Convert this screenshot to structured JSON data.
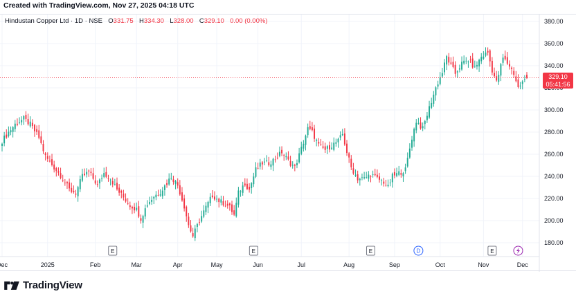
{
  "header": {
    "created_text": "Created with TradingView.com, Nov 27, 2025 04:18 UTC"
  },
  "legend": {
    "symbol": "Hindustan Copper Ltd · 1D · NSE",
    "o_label": "O",
    "o_value": "331.75",
    "h_label": "H",
    "h_value": "334.30",
    "l_label": "L",
    "l_value": "328.00",
    "c_label": "C",
    "c_value": "329.10",
    "change": "0.00 (0.00%)"
  },
  "price_tag": {
    "price": "329.10",
    "countdown": "05:41:56"
  },
  "footer": {
    "brand": "TradingView"
  },
  "colors": {
    "up": "#22ab94",
    "down": "#f23645",
    "grid": "#f0f3fa",
    "accent_dividend": "#2962ff",
    "accent_flash": "#9c27b0"
  },
  "chart_data": {
    "type": "candlestick",
    "title": "Hindustan Copper Ltd · 1D · NSE",
    "y_ticks": [
      180,
      200,
      220,
      240,
      260,
      280,
      300,
      320,
      340,
      360,
      380
    ],
    "ylim": [
      170,
      386
    ],
    "x_labels": [
      {
        "label": "Dec",
        "t": 0
      },
      {
        "label": "2025",
        "t": 21
      },
      {
        "label": "Feb",
        "t": 43
      },
      {
        "label": "Mar",
        "t": 62
      },
      {
        "label": "Apr",
        "t": 81
      },
      {
        "label": "May",
        "t": 99
      },
      {
        "label": "Jun",
        "t": 118
      },
      {
        "label": "Jul",
        "t": 138
      },
      {
        "label": "Aug",
        "t": 160
      },
      {
        "label": "Sep",
        "t": 181
      },
      {
        "label": "Oct",
        "t": 202
      },
      {
        "label": "Nov",
        "t": 222
      },
      {
        "label": "Dec",
        "t": 240
      }
    ],
    "event_markers": [
      {
        "type": "E",
        "t": 51
      },
      {
        "type": "E",
        "t": 116
      },
      {
        "type": "E",
        "t": 170
      },
      {
        "type": "D",
        "t": 192
      },
      {
        "type": "E",
        "t": 226
      },
      {
        "type": "flash",
        "t": 238
      }
    ],
    "anchors": [
      [
        0,
        272
      ],
      [
        3,
        280
      ],
      [
        6,
        287
      ],
      [
        10,
        292
      ],
      [
        13,
        287
      ],
      [
        17,
        275
      ],
      [
        20,
        258
      ],
      [
        24,
        248
      ],
      [
        27,
        241
      ],
      [
        31,
        228
      ],
      [
        34,
        225
      ],
      [
        37,
        240
      ],
      [
        40,
        244
      ],
      [
        44,
        232
      ],
      [
        47,
        243
      ],
      [
        50,
        238
      ],
      [
        53,
        228
      ],
      [
        56,
        221
      ],
      [
        59,
        214
      ],
      [
        62,
        210
      ],
      [
        64,
        202
      ],
      [
        67,
        215
      ],
      [
        70,
        222
      ],
      [
        73,
        226
      ],
      [
        76,
        234
      ],
      [
        78,
        240
      ],
      [
        81,
        232
      ],
      [
        84,
        213
      ],
      [
        86,
        196
      ],
      [
        88,
        186
      ],
      [
        91,
        200
      ],
      [
        94,
        212
      ],
      [
        97,
        223
      ],
      [
        100,
        218
      ],
      [
        103,
        215
      ],
      [
        105,
        212
      ],
      [
        107,
        205
      ],
      [
        109,
        225
      ],
      [
        112,
        234
      ],
      [
        114,
        228
      ],
      [
        117,
        246
      ],
      [
        120,
        252
      ],
      [
        123,
        252
      ],
      [
        126,
        256
      ],
      [
        129,
        262
      ],
      [
        132,
        254
      ],
      [
        135,
        248
      ],
      [
        138,
        265
      ],
      [
        141,
        283
      ],
      [
        143,
        280
      ],
      [
        146,
        268
      ],
      [
        149,
        264
      ],
      [
        152,
        268
      ],
      [
        155,
        272
      ],
      [
        157,
        278
      ],
      [
        159,
        262
      ],
      [
        161,
        248
      ],
      [
        164,
        238
      ],
      [
        167,
        238
      ],
      [
        170,
        242
      ],
      [
        173,
        238
      ],
      [
        176,
        235
      ],
      [
        178,
        230
      ],
      [
        180,
        240
      ],
      [
        183,
        243
      ],
      [
        186,
        246
      ],
      [
        189,
        275
      ],
      [
        191,
        290
      ],
      [
        194,
        283
      ],
      [
        197,
        302
      ],
      [
        200,
        320
      ],
      [
        203,
        334
      ],
      [
        205,
        348
      ],
      [
        207,
        340
      ],
      [
        209,
        333
      ],
      [
        212,
        342
      ],
      [
        215,
        345
      ],
      [
        218,
        338
      ],
      [
        221,
        348
      ],
      [
        224,
        352
      ],
      [
        226,
        336
      ],
      [
        228,
        325
      ],
      [
        231,
        347
      ],
      [
        234,
        340
      ],
      [
        236,
        333
      ],
      [
        238,
        320
      ],
      [
        240,
        325
      ],
      [
        242,
        329.1
      ]
    ]
  }
}
